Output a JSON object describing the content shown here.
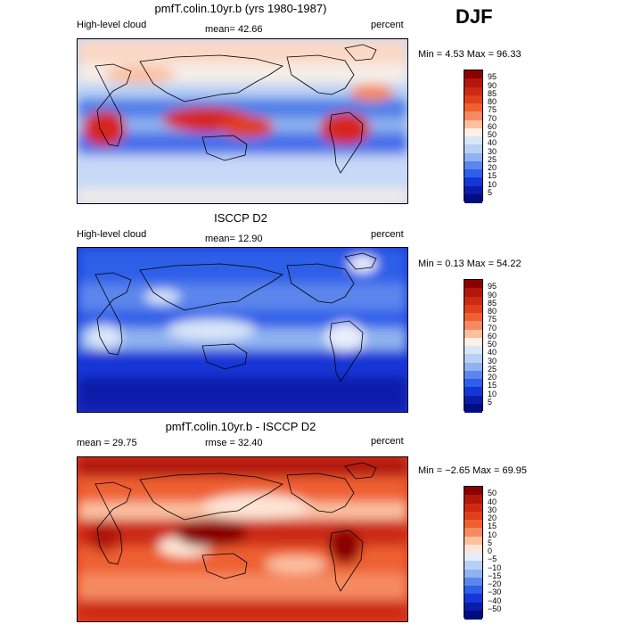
{
  "season": "DJF",
  "panels": [
    {
      "id": "model",
      "title": "pmfT.colin.10yr.b (yrs 1980-1987)",
      "left_label": "High-level cloud",
      "center_label": "mean=  42.66",
      "right_label": "percent",
      "minmax": "Min =    4.53 Max =  96.33",
      "colorbar": {
        "levels": [
          "95",
          "90",
          "85",
          "80",
          "75",
          "70",
          "60",
          "50",
          "40",
          "30",
          "25",
          "20",
          "15",
          "10",
          "5"
        ],
        "colors": [
          "#8b0000",
          "#b0180c",
          "#cc2a12",
          "#e0401c",
          "#ee6030",
          "#f58a60",
          "#fbc0a0",
          "#fdf0e6",
          "#d8e6f8",
          "#b8d0f4",
          "#8fb2f0",
          "#5b86ec",
          "#2f5ee8",
          "#1436d6",
          "#0a1ca8",
          "#000c80"
        ]
      },
      "regions": [
        {
          "name": "upper",
          "color": "#fbdccc"
        },
        {
          "name": "mid-blue",
          "color": "#4f7fe8"
        },
        {
          "name": "warm-pool",
          "color": "#d6281a"
        },
        {
          "name": "southern",
          "color": "#c6d9f6"
        }
      ]
    },
    {
      "id": "obs",
      "title": "ISCCP D2",
      "left_label": "High-level cloud",
      "center_label": "mean=  12.90",
      "right_label": "percent",
      "minmax": "Min =    0.13 Max =  54.22",
      "colorbar": {
        "levels": [
          "95",
          "90",
          "85",
          "80",
          "75",
          "70",
          "60",
          "50",
          "40",
          "30",
          "25",
          "20",
          "15",
          "10",
          "5"
        ],
        "colors": [
          "#8b0000",
          "#b0180c",
          "#cc2a12",
          "#e0401c",
          "#ee6030",
          "#f58a60",
          "#fbc0a0",
          "#fdf0e6",
          "#d8e6f8",
          "#b8d0f4",
          "#8fb2f0",
          "#5b86ec",
          "#2f5ee8",
          "#1436d6",
          "#0a1ca8",
          "#000c80"
        ]
      }
    },
    {
      "id": "diff",
      "title": "pmfT.colin.10yr.b - ISCCP D2",
      "left_label": "mean =    29.75",
      "center_label": "rmse =    32.40",
      "right_label": "percent",
      "minmax": "Min =  −2.65 Max =   69.95",
      "colorbar": {
        "levels": [
          "50",
          "40",
          "30",
          "20",
          "15",
          "10",
          "5",
          "0",
          "−5",
          "−10",
          "−15",
          "−20",
          "−30",
          "−40",
          "−50"
        ],
        "colors": [
          "#8b0000",
          "#b0180c",
          "#cc2a12",
          "#e0401c",
          "#ee6030",
          "#f58a60",
          "#fbc0a0",
          "#fde4d4",
          "#e4eefb",
          "#b8d0f4",
          "#8fb2f0",
          "#5b86ec",
          "#2f5ee8",
          "#1436d6",
          "#0a1ca8",
          "#000c80"
        ]
      }
    }
  ]
}
